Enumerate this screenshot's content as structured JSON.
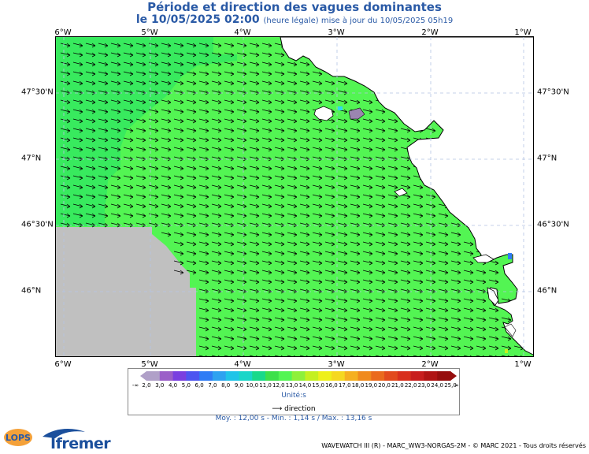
{
  "header": {
    "title": "Période et direction des vagues dominantes",
    "date_line": "le 10/05/2025 02:00",
    "date_note": "(heure légale) mise à jour du 10/05/2025 05h19"
  },
  "axes": {
    "lon_labels": [
      "6°W",
      "5°W",
      "4°W",
      "3°W",
      "2°W",
      "1°W"
    ],
    "lat_labels": [
      "47°30'N",
      "47°N",
      "46°30'N",
      "46°N"
    ]
  },
  "legend": {
    "values": [
      "-∞",
      "2,0",
      "3,0",
      "4,0",
      "5,0",
      "6,0",
      "7,0",
      "8,0",
      "9,0",
      "10,0",
      "11,0",
      "12,0",
      "13,0",
      "14,0",
      "15,0",
      "16,0",
      "17,0",
      "18,0",
      "19,0",
      "20,0",
      "21,0",
      "22,0",
      "23,0",
      "24,0",
      "25,0",
      "∞"
    ],
    "colors": [
      "#b0a0c8",
      "#9b5fc8",
      "#7a3fe0",
      "#4d55f0",
      "#2f7cf5",
      "#2ea2f0",
      "#20c4e8",
      "#1ad6c8",
      "#19d98a",
      "#3de04a",
      "#53f553",
      "#8ef03a",
      "#c4f020",
      "#eef01a",
      "#f5d820",
      "#f5b020",
      "#f08a1e",
      "#ea6a1e",
      "#e24a1e",
      "#d8301e",
      "#c81e1e",
      "#b01414",
      "#960e0e"
    ],
    "unit": "Unité:s",
    "direction_label": "direction",
    "stats": "Moy. : 12,00 s   -   Min. : 1,14 s / Max. : 13,16 s"
  },
  "map": {
    "sea_color": "#53f553",
    "offshore_color": "#38ea5e",
    "nodata_color": "#c0c0c0",
    "land_color": "#ffffff",
    "arrow_direction": "toward east-southeast"
  },
  "logos": {
    "lops": "LOPS",
    "ifremer": "Ifremer"
  },
  "footer": "WAVEWATCH III (R) - MARC_WW3-NORGAS-2M - © MARC 2021 - Tous droits réservés"
}
